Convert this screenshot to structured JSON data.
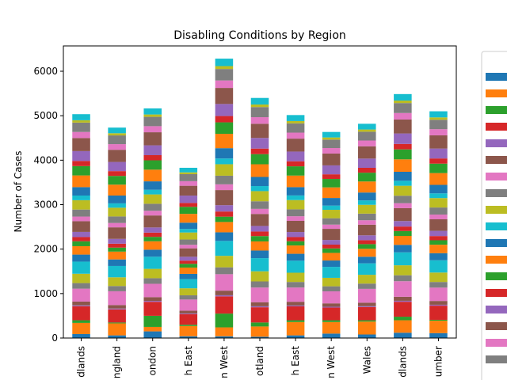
{
  "chart_data": {
    "type": "stacked_bar",
    "title": "Disabling Conditions by Region",
    "y_label": "Number of Cases",
    "categories": [
      "dlands",
      "ngland",
      "ondon",
      "h East",
      "n West",
      "otland",
      "h East",
      "n West",
      "Wales",
      "dlands",
      "umber"
    ],
    "ylim": [
      0,
      6570
    ],
    "yticks": [
      0,
      1000,
      2000,
      3000,
      4000,
      5000,
      6000
    ],
    "legend": "upper right",
    "series": [
      {
        "color": "#1f77b4",
        "values": [
          90,
          60,
          150,
          40,
          40,
          30,
          60,
          100,
          80,
          120,
          110
        ]
      },
      {
        "color": "#ff7f0e",
        "values": [
          250,
          270,
          100,
          230,
          200,
          230,
          300,
          260,
          290,
          280,
          280
        ]
      },
      {
        "color": "#2ca02c",
        "values": [
          60,
          20,
          250,
          30,
          310,
          90,
          40,
          40,
          30,
          80,
          20
        ]
      },
      {
        "color": "#d62728",
        "values": [
          315,
          294,
          315,
          237,
          387,
          342,
          312,
          285,
          297,
          336,
          318
        ]
      },
      {
        "color": "#9467bd",
        "values": [
          21,
          20,
          21,
          16,
          26,
          23,
          21,
          19,
          20,
          22,
          21
        ]
      },
      {
        "color": "#8c564b",
        "values": [
          84,
          78,
          84,
          63,
          103,
          91,
          83,
          76,
          79,
          90,
          85
        ]
      },
      {
        "color": "#e377c2",
        "values": [
          290,
          310,
          300,
          250,
          370,
          330,
          320,
          270,
          310,
          350,
          300
        ]
      },
      {
        "color": "#7f7f7f",
        "values": [
          126,
          118,
          126,
          95,
          155,
          137,
          125,
          114,
          119,
          134,
          127
        ]
      },
      {
        "color": "#bcbd22",
        "values": [
          210,
          196,
          210,
          158,
          258,
          228,
          208,
          190,
          198,
          224,
          212
        ]
      },
      {
        "color": "#17becf",
        "values": [
          273,
          255,
          273,
          205,
          335,
          296,
          270,
          247,
          257,
          291,
          276
        ]
      },
      {
        "color": "#1f77b4",
        "values": [
          158,
          147,
          158,
          119,
          194,
          171,
          156,
          143,
          149,
          168,
          159
        ]
      },
      {
        "color": "#ff7f0e",
        "values": [
          189,
          176,
          189,
          142,
          232,
          205,
          187,
          171,
          178,
          202,
          191
        ]
      },
      {
        "color": "#2ca02c",
        "values": [
          110,
          90,
          100,
          85,
          120,
          120,
          95,
          100,
          105,
          110,
          100
        ]
      },
      {
        "color": "#d62728",
        "values": [
          95,
          88,
          95,
          71,
          116,
          103,
          94,
          86,
          89,
          101,
          95
        ]
      },
      {
        "color": "#9467bd",
        "values": [
          116,
          108,
          116,
          87,
          142,
          125,
          114,
          105,
          109,
          123,
          117
        ]
      },
      {
        "color": "#8c564b",
        "values": [
          240,
          260,
          270,
          190,
          340,
          270,
          250,
          250,
          240,
          290,
          260
        ]
      },
      {
        "color": "#e377c2",
        "values": [
          105,
          98,
          105,
          79,
          129,
          114,
          104,
          95,
          99,
          112,
          106
        ]
      },
      {
        "color": "#7f7f7f",
        "values": [
          158,
          147,
          158,
          119,
          194,
          171,
          156,
          143,
          149,
          168,
          159
        ]
      },
      {
        "color": "#bcbd22",
        "values": [
          210,
          196,
          210,
          158,
          258,
          228,
          208,
          190,
          198,
          224,
          212
        ]
      },
      {
        "color": "#17becf",
        "values": [
          105,
          98,
          105,
          79,
          129,
          114,
          104,
          95,
          99,
          112,
          106
        ]
      },
      {
        "color": "#1f77b4",
        "values": [
          189,
          176,
          189,
          142,
          232,
          205,
          187,
          171,
          178,
          202,
          191
        ]
      },
      {
        "color": "#ff7f0e",
        "values": [
          263,
          245,
          263,
          198,
          323,
          285,
          260,
          238,
          248,
          280,
          265
        ]
      },
      {
        "color": "#2ca02c",
        "values": [
          210,
          196,
          210,
          158,
          258,
          228,
          208,
          190,
          198,
          224,
          212
        ]
      },
      {
        "color": "#d62728",
        "values": [
          116,
          108,
          116,
          87,
          142,
          125,
          114,
          105,
          109,
          123,
          117
        ]
      },
      {
        "color": "#9467bd",
        "values": [
          221,
          206,
          221,
          166,
          271,
          239,
          218,
          200,
          208,
          235,
          223
        ]
      },
      {
        "color": "#8c564b",
        "values": [
          294,
          274,
          294,
          221,
          361,
          319,
          291,
          266,
          277,
          314,
          297
        ]
      },
      {
        "color": "#e377c2",
        "values": [
          137,
          127,
          137,
          103,
          168,
          148,
          135,
          124,
          129,
          146,
          138
        ]
      },
      {
        "color": "#7f7f7f",
        "values": [
          210,
          196,
          210,
          158,
          258,
          228,
          208,
          190,
          198,
          224,
          212
        ]
      },
      {
        "color": "#bcbd22",
        "values": [
          53,
          49,
          53,
          40,
          65,
          57,
          52,
          48,
          50,
          56,
          53
        ]
      },
      {
        "color": "#17becf",
        "values": [
          137,
          127,
          137,
          103,
          168,
          148,
          135,
          124,
          129,
          146,
          138
        ]
      }
    ]
  }
}
